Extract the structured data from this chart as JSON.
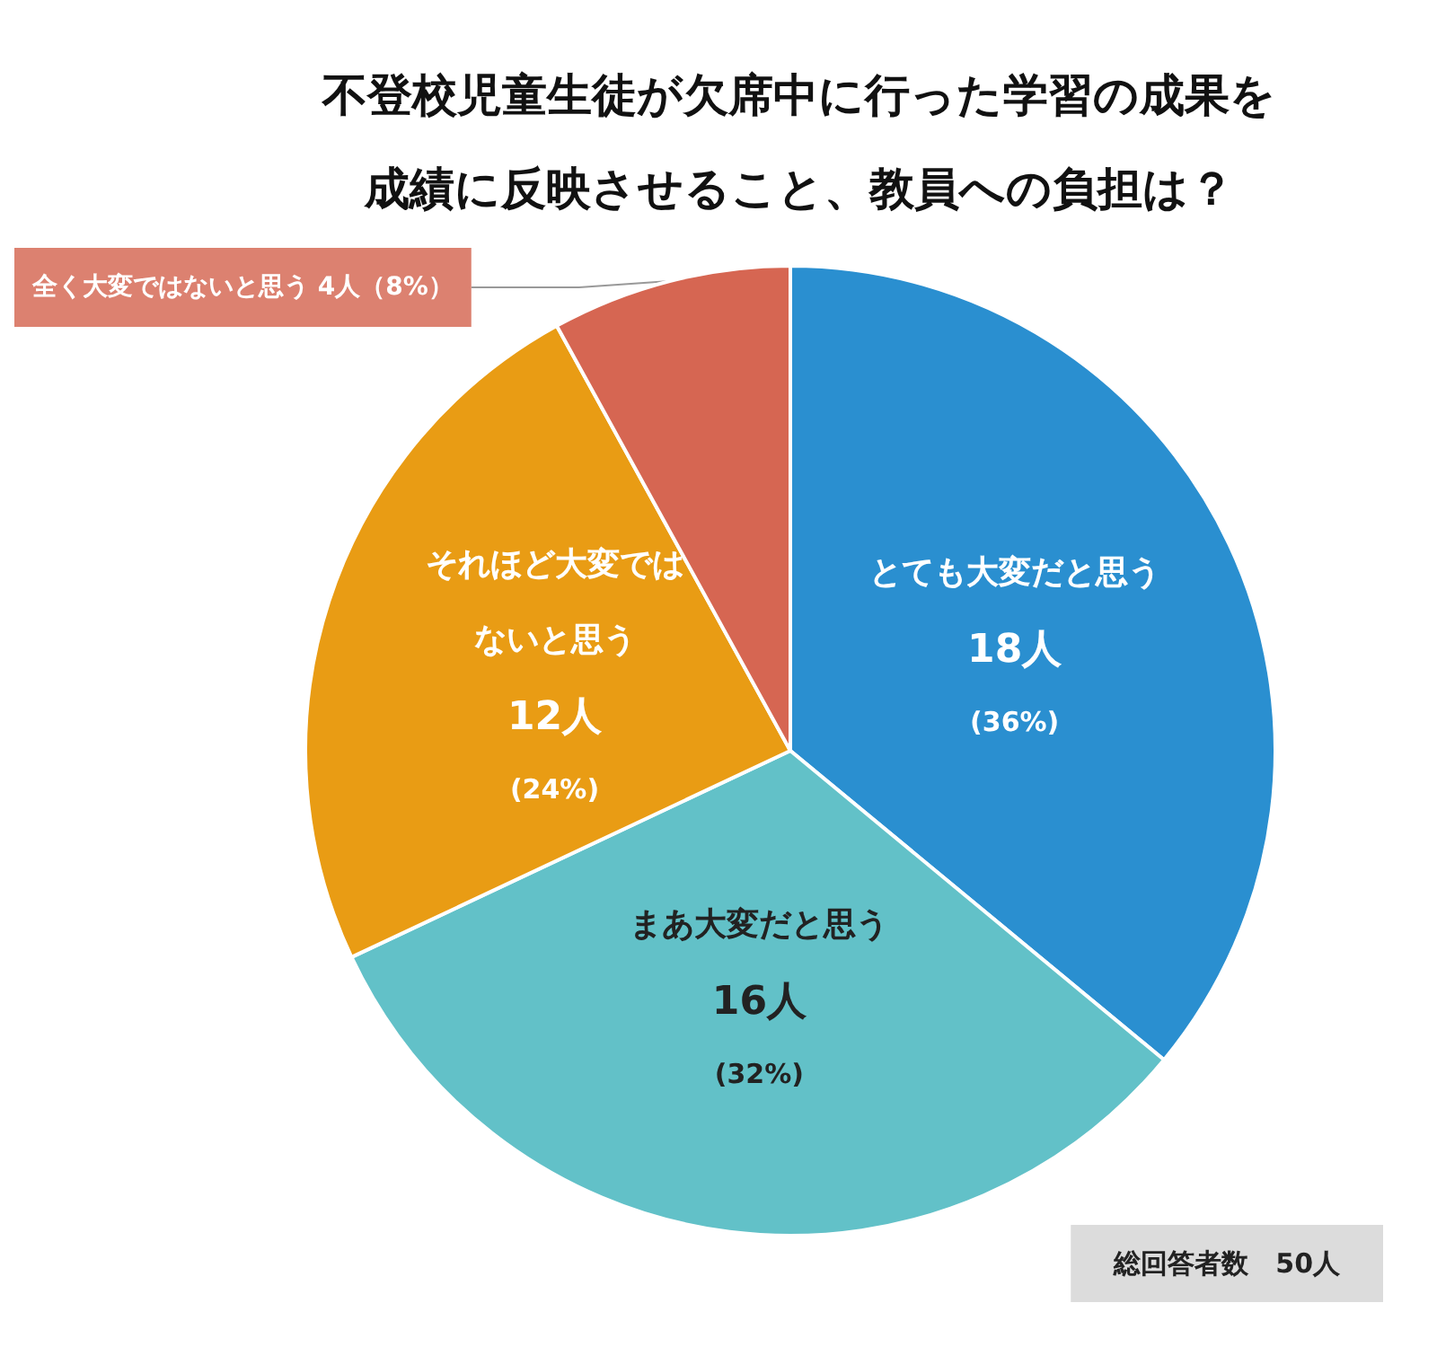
{
  "chart_data": {
    "type": "pie",
    "title": "不登校児童生徒が欠席中に行った学習の成果を成績に反映させること、教員への負担は？",
    "categories": [
      "とても大変だと思う",
      "まあ大変だと思う",
      "それほど大変ではないと思う",
      "全く大変ではないと思う"
    ],
    "values": [
      18,
      16,
      12,
      4
    ],
    "value_labels": [
      "18人\n(36%)",
      "16人\n(32%)",
      "12人\n(24%)",
      "4人（8%）"
    ],
    "colors": [
      "#2a8fd0",
      "#62c1c8",
      "#e99c14",
      "#d66652"
    ],
    "annotations": [
      "総回答者数　50人"
    ],
    "legend": false
  }
}
